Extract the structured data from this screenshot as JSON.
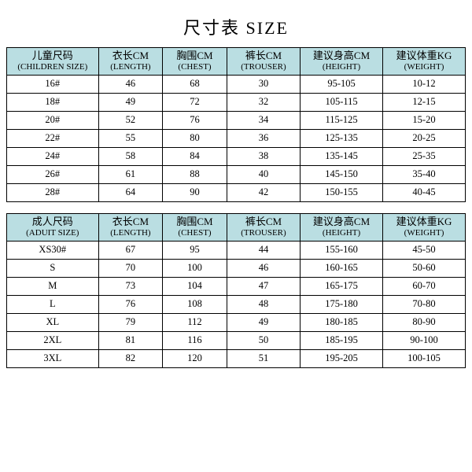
{
  "title": "尺寸表 SIZE",
  "header_bg": "#badee2",
  "children": {
    "columns": [
      {
        "cn": "儿童尺码",
        "en": "(CHILDREN SIZE)"
      },
      {
        "cn": "衣长CM",
        "en": "(LENGTH)"
      },
      {
        "cn": "胸围CM",
        "en": "(CHEST)"
      },
      {
        "cn": "裤长CM",
        "en": "(TROUSER)"
      },
      {
        "cn": "建议身高CM",
        "en": "(HEIGHT)"
      },
      {
        "cn": "建议体重KG",
        "en": "(WEIGHT)"
      }
    ],
    "rows": [
      [
        "16#",
        "46",
        "68",
        "30",
        "95-105",
        "10-12"
      ],
      [
        "18#",
        "49",
        "72",
        "32",
        "105-115",
        "12-15"
      ],
      [
        "20#",
        "52",
        "76",
        "34",
        "115-125",
        "15-20"
      ],
      [
        "22#",
        "55",
        "80",
        "36",
        "125-135",
        "20-25"
      ],
      [
        "24#",
        "58",
        "84",
        "38",
        "135-145",
        "25-35"
      ],
      [
        "26#",
        "61",
        "88",
        "40",
        "145-150",
        "35-40"
      ],
      [
        "28#",
        "64",
        "90",
        "42",
        "150-155",
        "40-45"
      ]
    ]
  },
  "adult": {
    "columns": [
      {
        "cn": "成人尺码",
        "en": "(ADUIT SIZE)"
      },
      {
        "cn": "衣长CM",
        "en": "(LENGTH)"
      },
      {
        "cn": "胸围CM",
        "en": "(CHEST)"
      },
      {
        "cn": "裤长CM",
        "en": "(TROUSER)"
      },
      {
        "cn": "建议身高CM",
        "en": "(HEIGHT)"
      },
      {
        "cn": "建议体重KG",
        "en": "(WEIGHT)"
      }
    ],
    "rows": [
      [
        "XS30#",
        "67",
        "95",
        "44",
        "155-160",
        "45-50"
      ],
      [
        "S",
        "70",
        "100",
        "46",
        "160-165",
        "50-60"
      ],
      [
        "M",
        "73",
        "104",
        "47",
        "165-175",
        "60-70"
      ],
      [
        "L",
        "76",
        "108",
        "48",
        "175-180",
        "70-80"
      ],
      [
        "XL",
        "79",
        "112",
        "49",
        "180-185",
        "80-90"
      ],
      [
        "2XL",
        "81",
        "116",
        "50",
        "185-195",
        "90-100"
      ],
      [
        "3XL",
        "82",
        "120",
        "51",
        "195-205",
        "100-105"
      ]
    ]
  }
}
